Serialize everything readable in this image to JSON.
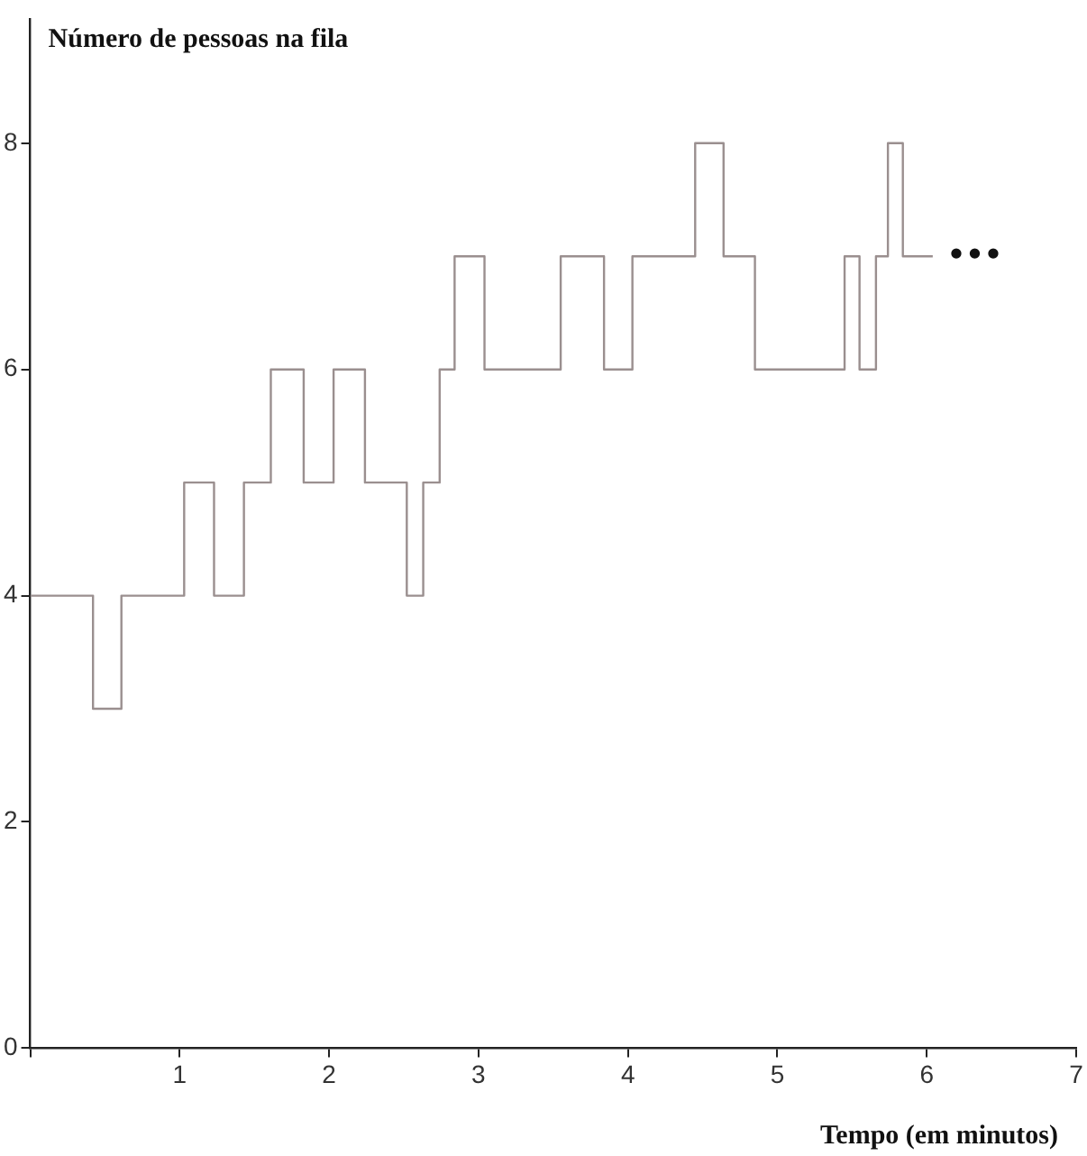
{
  "chart_data": {
    "type": "step",
    "ylabel": "Número de pessoas na fila",
    "xlabel": "Tempo (em minutos)",
    "x": [
      0,
      0.42,
      0.61,
      1.03,
      1.23,
      1.43,
      1.61,
      1.83,
      2.03,
      2.24,
      2.52,
      2.63,
      2.74,
      2.84,
      3.04,
      3.55,
      3.84,
      4.03,
      4.45,
      4.64,
      4.85,
      5.45,
      5.55,
      5.66,
      5.74,
      5.84,
      6.04
    ],
    "series": [
      {
        "color": "#9a8f8f",
        "values": [
          4,
          3,
          4,
          5,
          4,
          5,
          6,
          5,
          6,
          5,
          4,
          5,
          6,
          7,
          6,
          7,
          6,
          7,
          8,
          7,
          6,
          7,
          6,
          7,
          8,
          7,
          7
        ]
      }
    ],
    "xlim": [
      0,
      7
    ],
    "xticks": [
      {
        "value": 0,
        "label": null
      },
      1,
      2,
      3,
      4,
      5,
      6,
      7
    ],
    "ylim": [
      0,
      9.1
    ],
    "yticks": [
      0,
      2,
      4,
      6,
      8
    ],
    "annotations": [
      "•••"
    ],
    "grid": false,
    "legend": false,
    "marker": "none",
    "line_style": "solid"
  }
}
